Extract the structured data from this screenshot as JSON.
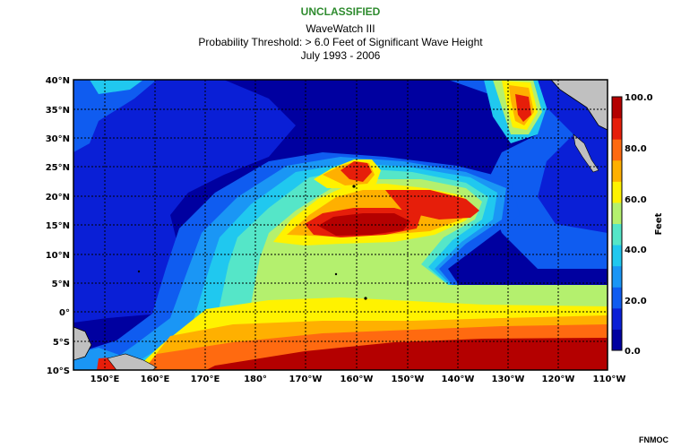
{
  "classification": "UNCLASSIFIED",
  "title": {
    "line1": "WaveWatch III",
    "line2": "Probability Threshold: > 6.0 Feet of Significant Wave Height",
    "line3": "July 1993 - 2006"
  },
  "credit": "FNMOC",
  "map": {
    "lat_labels": [
      "40°N",
      "35°N",
      "30°N",
      "25°N",
      "20°N",
      "15°N",
      "10°N",
      "5°N",
      "0°",
      "5°S",
      "10°S"
    ],
    "lon_labels": [
      "150°E",
      "160°E",
      "170°E",
      "180°",
      "170°W",
      "160°W",
      "150°W",
      "140°W",
      "130°W",
      "120°W",
      "110°W"
    ],
    "extent": {
      "lon_min": 145,
      "lon_max": 250,
      "lat_min": -10,
      "lat_max": 40
    }
  },
  "colorbar": {
    "label": "Feet",
    "tick_labels": [
      "100.0",
      "80.0",
      "60.0",
      "40.0",
      "20.0",
      "0.0"
    ],
    "range": [
      0,
      100
    ],
    "colors": [
      "#0000a0",
      "#0a1fd6",
      "#0f5cf0",
      "#1a96f5",
      "#20c8ef",
      "#55e6c8",
      "#b4f06e",
      "#fff200",
      "#ffb000",
      "#ff6a10",
      "#e61e0a",
      "#b40000"
    ]
  }
}
